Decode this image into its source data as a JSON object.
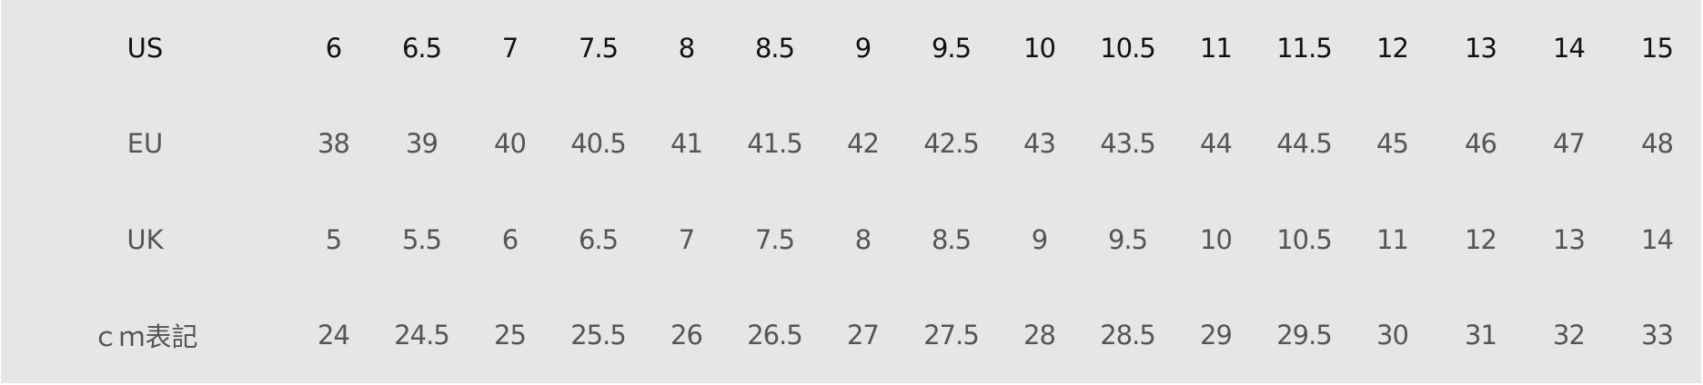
{
  "colors": {
    "background": "#e6e6e6",
    "header_text": "#111111",
    "body_text": "#555555"
  },
  "rows": [
    {
      "label": "US",
      "values": [
        "6",
        "6.5",
        "7",
        "7.5",
        "8",
        "8.5",
        "9",
        "9.5",
        "10",
        "10.5",
        "11",
        "11.5",
        "12",
        "13",
        "14",
        "15"
      ]
    },
    {
      "label": "EU",
      "values": [
        "38",
        "39",
        "40",
        "40.5",
        "41",
        "41.5",
        "42",
        "42.5",
        "43",
        "43.5",
        "44",
        "44.5",
        "45",
        "46",
        "47",
        "48"
      ]
    },
    {
      "label": "UK",
      "values": [
        "5",
        "5.5",
        "6",
        "6.5",
        "7",
        "7.5",
        "8",
        "8.5",
        "9",
        "9.5",
        "10",
        "10.5",
        "11",
        "12",
        "13",
        "14"
      ]
    },
    {
      "label": "ｃｍ表記",
      "values": [
        "24",
        "24.5",
        "25",
        "25.5",
        "26",
        "26.5",
        "27",
        "27.5",
        "28",
        "28.5",
        "29",
        "29.5",
        "30",
        "31",
        "32",
        "33"
      ]
    }
  ]
}
